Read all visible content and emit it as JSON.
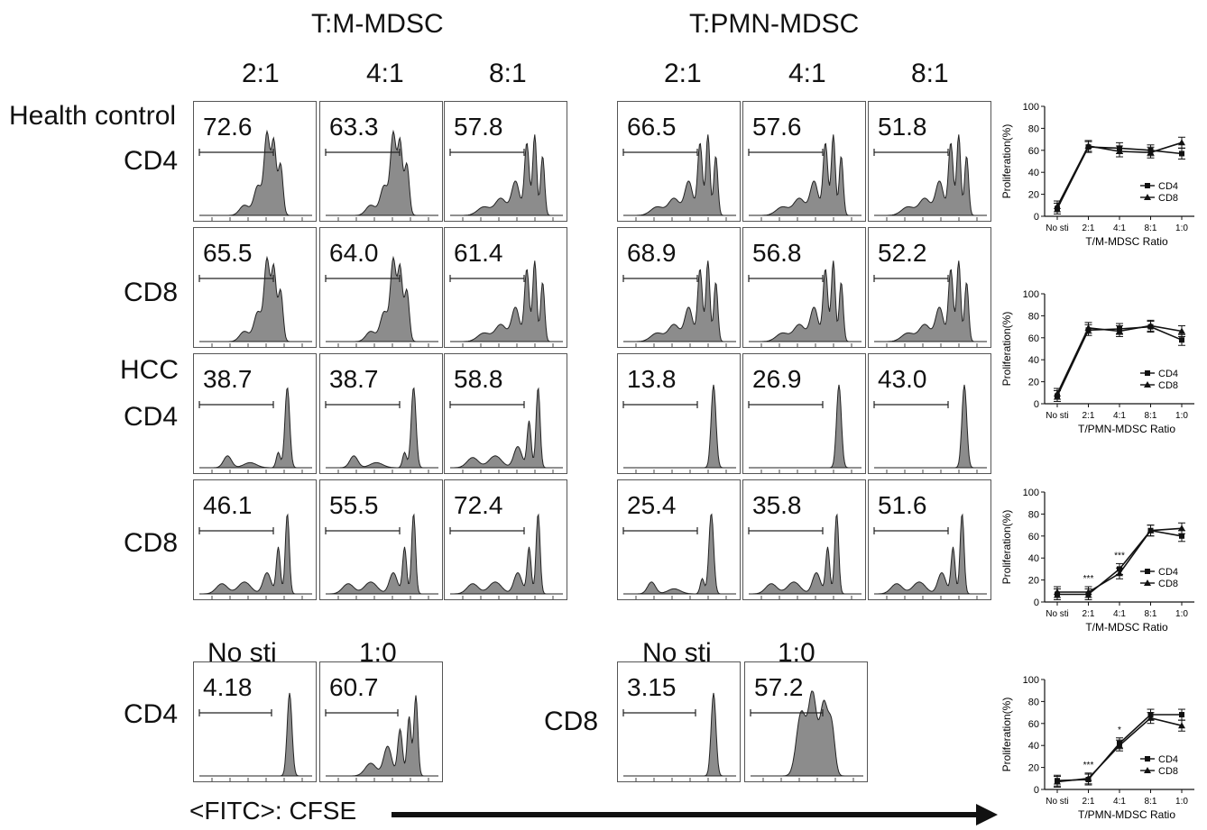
{
  "group_titles": [
    "T:M-MDSC",
    "T:PMN-MDSC"
  ],
  "ratios": [
    "2:1",
    "4:1",
    "8:1"
  ],
  "row_labels": {
    "health": "Health control",
    "hcc": "HCC",
    "cd4": "CD4",
    "cd8": "CD8"
  },
  "bottom_labels": [
    "No sti",
    "1:0"
  ],
  "axis_label": "<FITC>: CFSE",
  "histograms": {
    "m_mdsc": {
      "hc_cd4": [
        "72.6",
        "63.3",
        "57.8"
      ],
      "hc_cd8": [
        "65.5",
        "64.0",
        "61.4"
      ],
      "hcc_cd4": [
        "38.7",
        "38.7",
        "58.8"
      ],
      "hcc_cd8": [
        "46.1",
        "55.5",
        "72.4"
      ]
    },
    "pmn_mdsc": {
      "hc_cd4": [
        "66.5",
        "57.6",
        "51.8"
      ],
      "hc_cd8": [
        "68.9",
        "56.8",
        "52.2"
      ],
      "hcc_cd4": [
        "13.8",
        "26.9",
        "43.0"
      ],
      "hcc_cd8": [
        "25.4",
        "35.8",
        "51.6"
      ]
    },
    "controls": {
      "cd4": [
        "4.18",
        "60.7"
      ],
      "cd8": [
        "3.15",
        "57.2"
      ]
    }
  },
  "chart_data": [
    {
      "type": "line",
      "categories": [
        "No sti",
        "2:1",
        "4:1",
        "8:1",
        "1:0"
      ],
      "xlabel": "T/M-MDSC Ratio",
      "ylabel": "Proliferation(%)",
      "ylim": [
        0,
        100
      ],
      "yticks": [
        0,
        20,
        40,
        60,
        80,
        100
      ],
      "series": [
        {
          "name": "CD4",
          "values": [
            7,
            63,
            62,
            60,
            57
          ]
        },
        {
          "name": "CD8",
          "values": [
            9,
            64,
            59,
            58,
            67
          ]
        }
      ],
      "annotations": [],
      "legend": "bottom-right"
    },
    {
      "type": "line",
      "categories": [
        "No sti",
        "2:1",
        "4:1",
        "8:1",
        "1:0"
      ],
      "xlabel": "T/PMN-MDSC Ratio",
      "ylabel": "Proliferation(%)",
      "ylim": [
        0,
        100
      ],
      "yticks": [
        0,
        20,
        40,
        60,
        80,
        100
      ],
      "series": [
        {
          "name": "CD4",
          "values": [
            7,
            67,
            68,
            70,
            58
          ]
        },
        {
          "name": "CD8",
          "values": [
            9,
            69,
            66,
            71,
            66
          ]
        }
      ],
      "annotations": [],
      "legend": "bottom-right"
    },
    {
      "type": "line",
      "categories": [
        "No sti",
        "2:1",
        "4:1",
        "8:1",
        "1:0"
      ],
      "xlabel": "T/M-MDSC Ratio",
      "ylabel": "Proliferation(%)",
      "ylim": [
        0,
        100
      ],
      "yticks": [
        0,
        20,
        40,
        60,
        80,
        100
      ],
      "series": [
        {
          "name": "CD4",
          "values": [
            7,
            7,
            30,
            65,
            60
          ]
        },
        {
          "name": "CD8",
          "values": [
            9,
            9,
            26,
            65,
            67
          ]
        }
      ],
      "annotations": [
        {
          "category": "2:1",
          "text": "***"
        },
        {
          "category": "4:1",
          "text": "***"
        }
      ],
      "legend": "bottom-right"
    },
    {
      "type": "line",
      "categories": [
        "No sti",
        "2:1",
        "4:1",
        "8:1",
        "1:0"
      ],
      "xlabel": "T/PMN-MDSC Ratio",
      "ylabel": "Proliferation(%)",
      "ylim": [
        0,
        100
      ],
      "yticks": [
        0,
        20,
        40,
        60,
        80,
        100
      ],
      "series": [
        {
          "name": "CD4",
          "values": [
            8,
            9,
            42,
            68,
            68
          ]
        },
        {
          "name": "CD8",
          "values": [
            7,
            10,
            40,
            65,
            58
          ]
        }
      ],
      "annotations": [
        {
          "category": "2:1",
          "text": "***"
        },
        {
          "category": "4:1",
          "text": "*"
        }
      ],
      "legend": "bottom-right"
    }
  ]
}
